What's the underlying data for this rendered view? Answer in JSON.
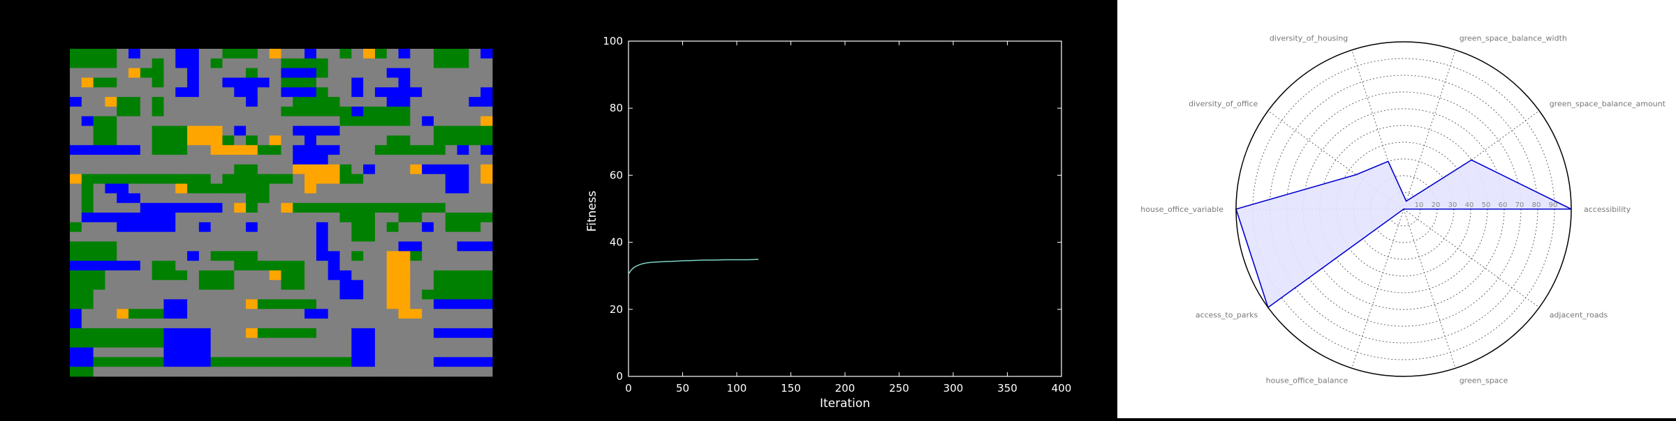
{
  "colors": {
    "road": "#808080",
    "green": "#008000",
    "office": "#0000ff",
    "housing": "#ffa500",
    "fitness_line": "#7fd3c7",
    "radar_line": "#0000cc",
    "radar_fill": "#e3e3ff"
  },
  "chart_data": [
    {
      "type": "heatmap",
      "legend": {
        "G": "green-space",
        "R": "road",
        "B": "office",
        "O": "housing"
      },
      "rows": [
        "GGGGRBRRRBBRRGGGRORRBRRGROGRBRRGGGRB",
        "GGGGRRRGRBBRGRRRRRGGGGRRRRRRRRRGGGRR",
        "RRRRROGGRRBRRRRGRRBBBGRRRRRBBRRRRRRR",
        "ROGGRRRGRRBRRBBBBRGGGRRRBRRRBRRRRRRR",
        "RRRRRRRRRBBRRRBBRRBBBGRRBRBBBBRRRRRB",
        "BRROGGRGRRRRRRRBRRRGGGGRRRRBBRRRRRBB",
        "RRRRGGRGRRRRRRRRRRGGGGGGBGGGGRRRRRRR",
        "RBGGRRRRRRRRRRRRRRRRRRRGGGGGGRBRRRRO",
        "RRGGRRRGGGOOORBRRRRBBBBRRRRRRRRGGGGG",
        "RRGGRRRGGGOOOGRGRORRBRRRRRRGGRRGGGGG",
        "BBBBBBRGGGRROOOOGGRBBBBRRRGGGGGGRBRB",
        "RRRRRRRRRRRRRRRRRRRBBBRRRRRRRRRRRRRR",
        "RRRRRRRRRRRRRRGGRRROOOOGRBRRROBBBBRO",
        "OGGGGGGGGGGGRGGGGGGROOOGGRRRRRRRBBRO",
        "RGRBBRRRROGGGGGGGRRRORRRRRRRRRRRBBRR",
        "RGRRBBRRRRRRRRRGGRRRRRRRRRRRRRRRRRRR",
        "RGRRRRBBBBBBBROGRROGGGGGGGGGGGGGRRRR",
        "RBBBBBBBBRRRRRRRRRRRRRRGGGRRGGRRGGGG",
        "GRRRBBBBBRRBRRRBRRRRRBRRGGRGRRBRGGGR",
        "RRRRRRRRRRRRRRRRRRRRRBRRGGRRRRRRRRRR",
        "GGGGRRRRRRRRRRRRRRRRRBRRRRRRBBRRRBBB",
        "GGGGRRRRRRBRGGGGRRRRRBBRGRROOGRRRRRR",
        "BBBBBBRGGRRRRRGGGGGGRRBRRRROORRRRRRR",
        "GGGRRRRGGGRGGGRRROGGRRBBRRROORRGGGGG",
        "GGGRRRRRRRRGGGRRRRGGRRRBBRROORRGGGGG",
        "GGRRRRRRRRRRRRRRRRRRRRRBBRROORGGGGGG",
        "GGRRRRRRBBRRRRROGGGGGRRRRRROORRBBBBB",
        "BRRROGGGBBRRRRRRRRRRBBRRRRRROORRRRRR",
        "BRRRRRRRRRRRRRRRRRRRRRRRRRRRRRRRRRRR",
        "GGGGGGGGBBBBRRROGGGGGRRRBBRRRRRBBBBB",
        "GGGGGGGGBBBBRRRRRRRRRRRRBBRRRRRRRRRR",
        "BBRRRRRRBBBBRRRRRRRRRRRRBBRRRRRRRRRR",
        "BBGGGGGGBBBBGGGGGGGGGGGGBBRRRRRBBBBB",
        "GGRRRRRRRRRRRRRRRRRRRRRRRRRRRRRRRRRR"
      ]
    },
    {
      "type": "line",
      "xlabel": "Iteration",
      "ylabel": "Fitness",
      "xlim": [
        0,
        400
      ],
      "ylim": [
        0,
        100
      ],
      "xticks": [
        0,
        50,
        100,
        150,
        200,
        250,
        300,
        350,
        400
      ],
      "yticks": [
        0,
        20,
        40,
        60,
        80,
        100
      ],
      "series": [
        {
          "x": [
            0,
            2,
            4,
            6,
            8,
            10,
            13,
            16,
            20,
            25,
            30,
            40,
            50,
            60,
            70,
            80,
            90,
            100,
            110,
            120
          ],
          "y": [
            30.5,
            31.5,
            32.2,
            32.7,
            33.0,
            33.3,
            33.6,
            33.8,
            34.0,
            34.1,
            34.2,
            34.3,
            34.5,
            34.6,
            34.7,
            34.7,
            34.8,
            34.8,
            34.8,
            34.9
          ]
        }
      ]
    },
    {
      "type": "radar",
      "axes": [
        "accessibility",
        "green_space_balance_amount",
        "green_space_balance_width",
        "diversity_of_housing",
        "diversity_of_office",
        "house_office_variable",
        "access_to_parks",
        "house_office_balance",
        "green_space",
        "adjacent_roads"
      ],
      "values": [
        100,
        50,
        5,
        30,
        35,
        100,
        100,
        0,
        0,
        0
      ],
      "rlim": [
        0,
        100
      ],
      "rticks": [
        10,
        20,
        30,
        40,
        50,
        60,
        70,
        80,
        90
      ]
    }
  ]
}
